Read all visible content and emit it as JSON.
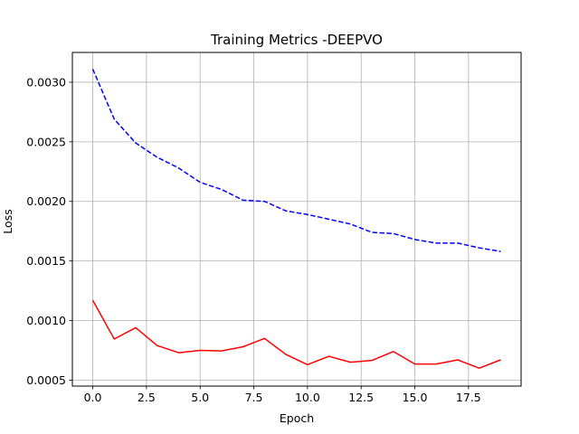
{
  "chart_data": {
    "type": "line",
    "title": "Training Metrics -DEEPVO",
    "xlabel": "Epoch",
    "ylabel": "Loss",
    "xlim": [
      -0.95,
      19.95
    ],
    "ylim": [
      0.00045,
      0.00325
    ],
    "xticks": [
      0,
      2.5,
      5,
      7.5,
      10,
      12.5,
      15,
      17.5
    ],
    "xtick_labels": [
      "0.0",
      "2.5",
      "5.0",
      "7.5",
      "10.0",
      "12.5",
      "15.0",
      "17.5"
    ],
    "yticks": [
      0.0005,
      0.001,
      0.0015,
      0.002,
      0.0025,
      0.003
    ],
    "ytick_labels": [
      "0.0005",
      "0.0010",
      "0.0015",
      "0.0020",
      "0.0025",
      "0.0030"
    ],
    "grid": true,
    "x": [
      0,
      1,
      2,
      3,
      4,
      5,
      6,
      7,
      8,
      9,
      10,
      11,
      12,
      13,
      14,
      15,
      16,
      17,
      18,
      19
    ],
    "series": [
      {
        "color": "#0000ff",
        "style": "dashed",
        "values": [
          0.00311,
          0.00269,
          0.00249,
          0.00237,
          0.00228,
          0.00216,
          0.0021,
          0.00201,
          0.002,
          0.00192,
          0.00189,
          0.00185,
          0.00181,
          0.00174,
          0.00173,
          0.00168,
          0.00165,
          0.00165,
          0.00161,
          0.00158
        ]
      },
      {
        "color": "#ff0000",
        "style": "solid",
        "values": [
          0.00117,
          0.000845,
          0.00094,
          0.00079,
          0.00073,
          0.00075,
          0.000745,
          0.00078,
          0.00085,
          0.000715,
          0.00063,
          0.0007,
          0.00065,
          0.000665,
          0.00074,
          0.000635,
          0.000635,
          0.00067,
          0.0006,
          0.00067
        ]
      }
    ]
  }
}
